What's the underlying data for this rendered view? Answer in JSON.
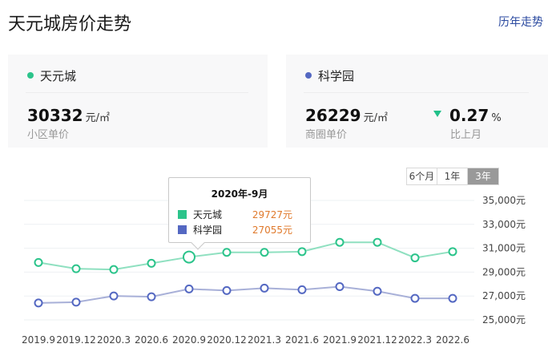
{
  "header": {
    "title": "天元城房价走势",
    "history_link": "历年走势"
  },
  "cards": {
    "community": {
      "name": "天元城",
      "dot_color": "#2cc48b",
      "price": "30332",
      "unit": "元/㎡",
      "label": "小区单价"
    },
    "district": {
      "name": "科学园",
      "dot_color": "#5468c2",
      "price": "26229",
      "unit": "元/㎡",
      "label": "商圈单价",
      "change_value": "0.27",
      "change_unit": "%",
      "change_direction": "down",
      "change_label": "比上月"
    }
  },
  "range_tabs": [
    {
      "label": "6个月",
      "active": false
    },
    {
      "label": "1年",
      "active": false
    },
    {
      "label": "3年",
      "active": true
    }
  ],
  "tooltip": {
    "title": "2020年-9月",
    "rows": [
      {
        "name": "天元城",
        "value": "29727元",
        "color": "#2cc48b"
      },
      {
        "name": "科学园",
        "value": "27055元",
        "color": "#5468c2"
      }
    ]
  },
  "chart_data": {
    "type": "line",
    "title": "天元城房价走势",
    "categories": [
      "2019.9",
      "2019.12",
      "2020.3",
      "2020.6",
      "2020.9",
      "2020.12",
      "2021.3",
      "2021.6",
      "2021.9",
      "2021.12",
      "2022.3",
      "2022.6"
    ],
    "series": [
      {
        "name": "天元城",
        "color": "#2cc48b",
        "values": [
          29270,
          28750,
          28680,
          29200,
          29727,
          30120,
          30120,
          30180,
          30960,
          30960,
          29660,
          30180
        ]
      },
      {
        "name": "科学园",
        "color": "#5468c2",
        "values": [
          25880,
          25950,
          26470,
          26400,
          27055,
          26920,
          27120,
          26990,
          27250,
          26860,
          26270,
          26270
        ]
      }
    ],
    "y_ticks": [
      "35,000元",
      "33,000元",
      "31,000元",
      "29,000元",
      "27,000元",
      "25,000元"
    ],
    "ylim": [
      25000,
      35000
    ],
    "xlabel": "",
    "ylabel": "",
    "grid": true,
    "legend_position": "none",
    "highlighted_index": 4
  }
}
